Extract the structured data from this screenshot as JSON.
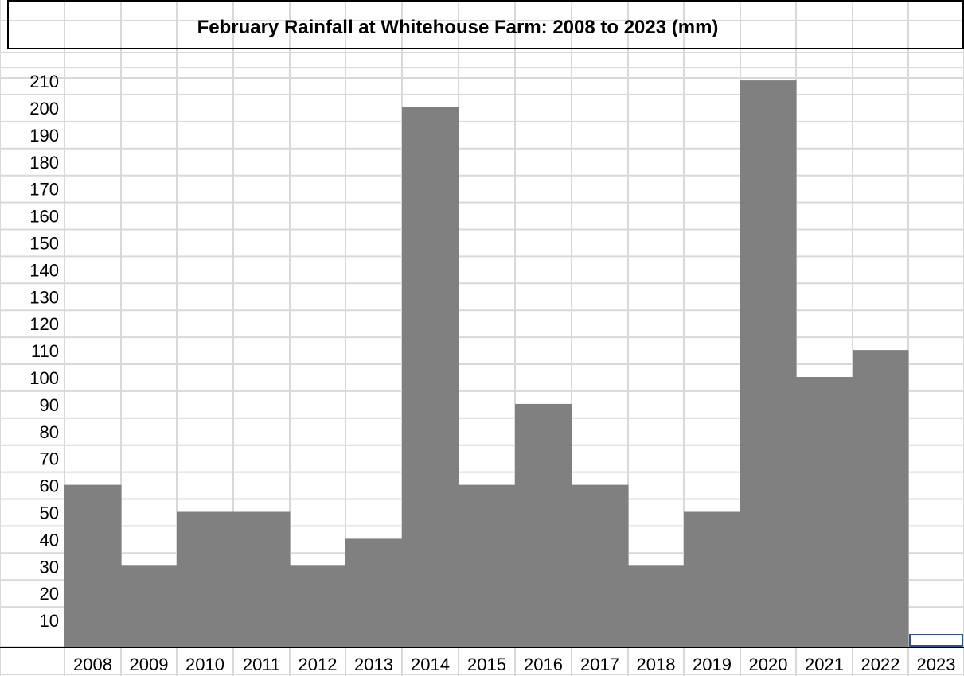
{
  "chart_data": {
    "type": "bar",
    "title": "February Rainfall at Whitehouse Farm: 2008 to 2023 (mm)",
    "xlabel": "",
    "ylabel": "",
    "categories": [
      "2008",
      "2009",
      "2010",
      "2011",
      "2012",
      "2013",
      "2014",
      "2015",
      "2016",
      "2017",
      "2018",
      "2019",
      "2020",
      "2021",
      "2022",
      "2023"
    ],
    "values": [
      60,
      30,
      50,
      50,
      30,
      40,
      200,
      60,
      90,
      60,
      30,
      50,
      210,
      100,
      110,
      0
    ],
    "yticks": [
      "10",
      "20",
      "30",
      "40",
      "50",
      "60",
      "70",
      "80",
      "90",
      "100",
      "110",
      "120",
      "130",
      "140",
      "150",
      "160",
      "170",
      "180",
      "190",
      "200",
      "210"
    ],
    "ylim": [
      0,
      210
    ],
    "grid": true,
    "legend": "none",
    "colors": {
      "bar": "#808080",
      "grid": "#d9d9d9",
      "border": "#000000",
      "selection": "#2f528f"
    }
  }
}
